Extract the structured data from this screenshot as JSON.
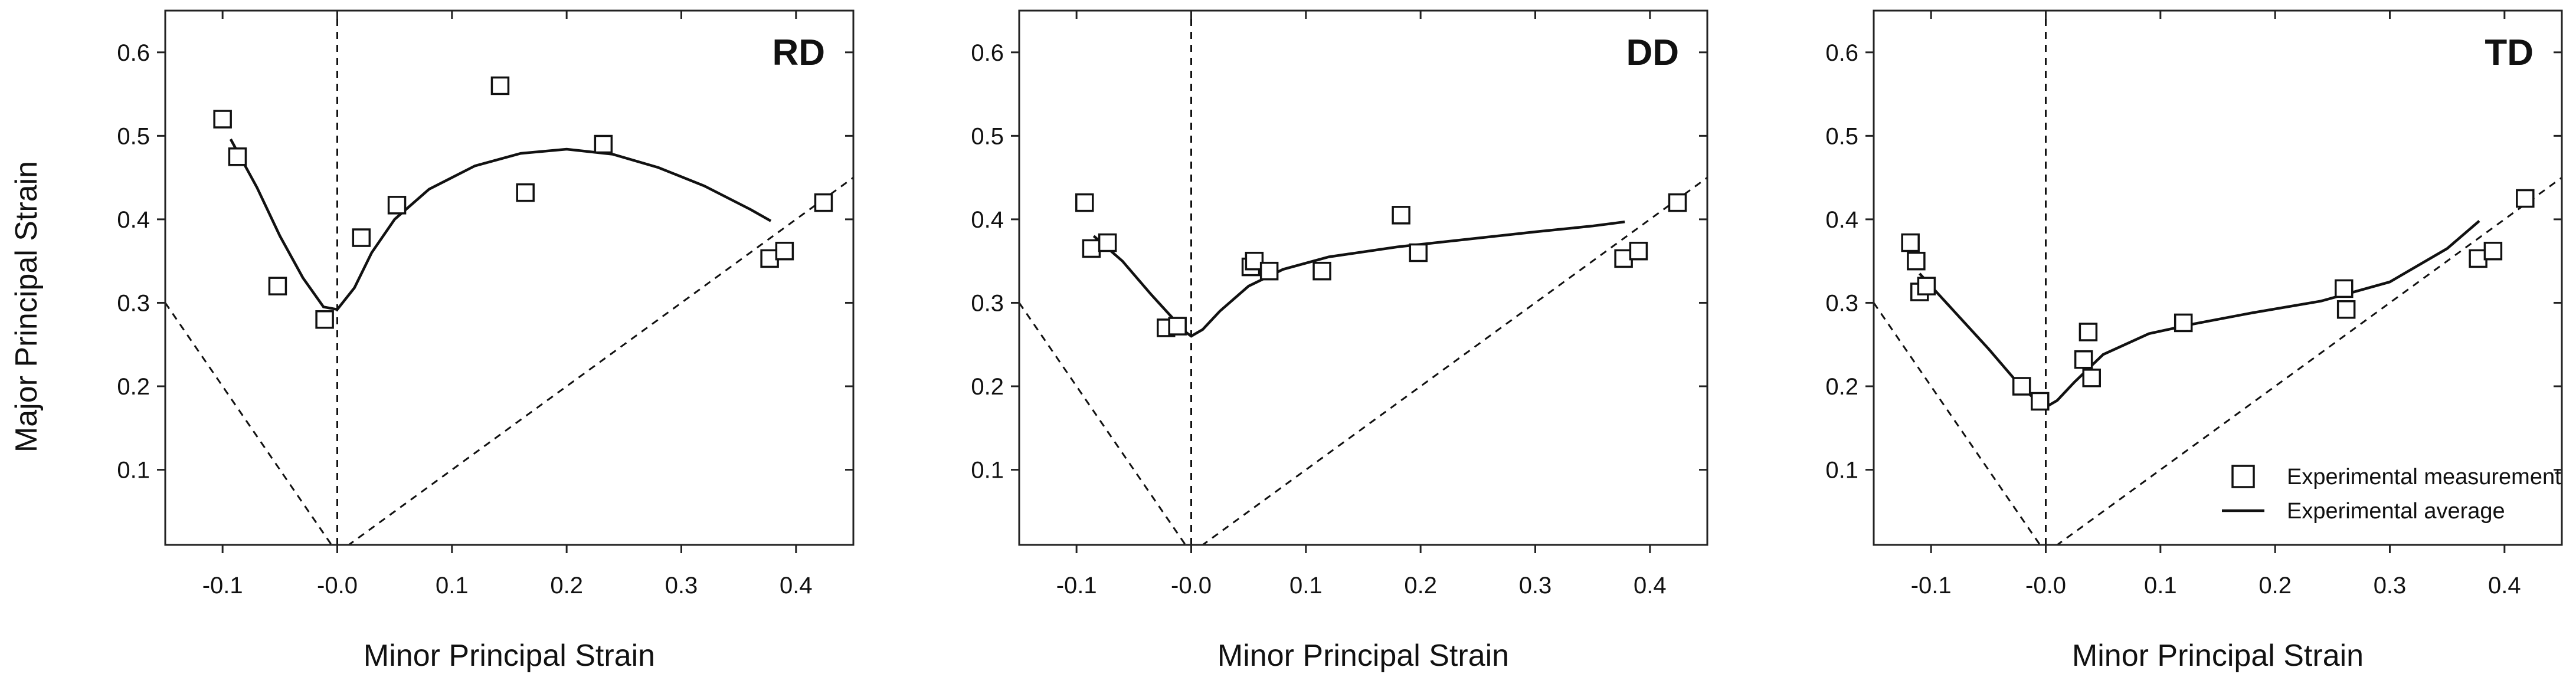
{
  "figure": {
    "ylabel": "Major Principal Strain",
    "legend": {
      "measurement_label": "Experimental measurement",
      "average_label": "Experimental average",
      "placement": "bottom-right of TD panel"
    }
  },
  "chart_data": [
    {
      "type": "scatter",
      "title": "RD",
      "xlabel": "Minor Principal Strain",
      "ylabel": "Major Principal Strain",
      "xlim": [
        -0.15,
        0.45
      ],
      "ylim": [
        0.01,
        0.65
      ],
      "xticks": [
        -0.1,
        0.0,
        0.1,
        0.2,
        0.3,
        0.4
      ],
      "xtick_labels": [
        "-0.1",
        "-0.0",
        "0.1",
        "0.2",
        "0.3",
        "0.4"
      ],
      "yticks": [
        0.1,
        0.2,
        0.3,
        0.4,
        0.5,
        0.6
      ],
      "ytick_labels": [
        "0.1",
        "0.2",
        "0.3",
        "0.4",
        "0.5",
        "0.6"
      ],
      "series": [
        {
          "name": "Experimental measurement",
          "points": [
            [
              -0.1,
              0.52
            ],
            [
              -0.087,
              0.475
            ],
            [
              -0.052,
              0.32
            ],
            [
              -0.011,
              0.28
            ],
            [
              0.021,
              0.378
            ],
            [
              0.052,
              0.417
            ],
            [
              0.142,
              0.56
            ],
            [
              0.164,
              0.432
            ],
            [
              0.232,
              0.49
            ],
            [
              0.377,
              0.353
            ],
            [
              0.39,
              0.362
            ],
            [
              0.424,
              0.42
            ]
          ]
        },
        {
          "name": "Experimental average",
          "line": [
            [
              -0.093,
              0.496
            ],
            [
              -0.07,
              0.438
            ],
            [
              -0.05,
              0.38
            ],
            [
              -0.03,
              0.33
            ],
            [
              -0.012,
              0.295
            ],
            [
              0.0,
              0.292
            ],
            [
              0.015,
              0.318
            ],
            [
              0.03,
              0.36
            ],
            [
              0.05,
              0.4
            ],
            [
              0.08,
              0.436
            ],
            [
              0.12,
              0.464
            ],
            [
              0.16,
              0.479
            ],
            [
              0.2,
              0.484
            ],
            [
              0.24,
              0.478
            ],
            [
              0.28,
              0.462
            ],
            [
              0.32,
              0.44
            ],
            [
              0.36,
              0.412
            ],
            [
              0.378,
              0.398
            ]
          ]
        }
      ],
      "reference_lines": [
        {
          "name": "uniaxial-tension",
          "from": [
            -0.15,
            0.3
          ],
          "to": [
            0.0,
            0.0
          ]
        },
        {
          "name": "equi-biaxial",
          "from": [
            0.0,
            0.0
          ],
          "to": [
            0.45,
            0.45
          ]
        },
        {
          "name": "plane-strain",
          "from": [
            0.0,
            0.01
          ],
          "to": [
            0.0,
            0.65
          ]
        }
      ]
    },
    {
      "type": "scatter",
      "title": "DD",
      "xlabel": "Minor Principal Strain",
      "ylabel": "Major Principal Strain",
      "xlim": [
        -0.15,
        0.45
      ],
      "ylim": [
        0.01,
        0.65
      ],
      "xticks": [
        -0.1,
        0.0,
        0.1,
        0.2,
        0.3,
        0.4
      ],
      "xtick_labels": [
        "-0.1",
        "-0.0",
        "0.1",
        "0.2",
        "0.3",
        "0.4"
      ],
      "yticks": [
        0.1,
        0.2,
        0.3,
        0.4,
        0.5,
        0.6
      ],
      "ytick_labels": [
        "0.1",
        "0.2",
        "0.3",
        "0.4",
        "0.5",
        "0.6"
      ],
      "series": [
        {
          "name": "Experimental measurement",
          "points": [
            [
              -0.093,
              0.42
            ],
            [
              -0.087,
              0.365
            ],
            [
              -0.073,
              0.372
            ],
            [
              -0.022,
              0.27
            ],
            [
              -0.012,
              0.272
            ],
            [
              0.052,
              0.343
            ],
            [
              0.055,
              0.35
            ],
            [
              0.068,
              0.338
            ],
            [
              0.114,
              0.338
            ],
            [
              0.183,
              0.405
            ],
            [
              0.198,
              0.36
            ],
            [
              0.377,
              0.353
            ],
            [
              0.39,
              0.362
            ],
            [
              0.424,
              0.42
            ]
          ]
        },
        {
          "name": "Experimental average",
          "line": [
            [
              -0.085,
              0.38
            ],
            [
              -0.06,
              0.35
            ],
            [
              -0.035,
              0.31
            ],
            [
              -0.015,
              0.28
            ],
            [
              -0.005,
              0.265
            ],
            [
              0.0,
              0.26
            ],
            [
              0.01,
              0.268
            ],
            [
              0.025,
              0.29
            ],
            [
              0.05,
              0.32
            ],
            [
              0.08,
              0.34
            ],
            [
              0.12,
              0.355
            ],
            [
              0.18,
              0.367
            ],
            [
              0.24,
              0.376
            ],
            [
              0.3,
              0.385
            ],
            [
              0.35,
              0.392
            ],
            [
              0.378,
              0.397
            ]
          ]
        }
      ],
      "reference_lines": [
        {
          "name": "uniaxial-tension",
          "from": [
            -0.15,
            0.3
          ],
          "to": [
            0.0,
            0.0
          ]
        },
        {
          "name": "equi-biaxial",
          "from": [
            0.0,
            0.0
          ],
          "to": [
            0.45,
            0.45
          ]
        },
        {
          "name": "plane-strain",
          "from": [
            0.0,
            0.01
          ],
          "to": [
            0.0,
            0.65
          ]
        }
      ]
    },
    {
      "type": "scatter",
      "title": "TD",
      "xlabel": "Minor Principal Strain",
      "ylabel": "Major Principal Strain",
      "xlim": [
        -0.15,
        0.45
      ],
      "ylim": [
        0.01,
        0.65
      ],
      "xticks": [
        -0.1,
        0.0,
        0.1,
        0.2,
        0.3,
        0.4
      ],
      "xtick_labels": [
        "-0.1",
        "-0.0",
        "0.1",
        "0.2",
        "0.3",
        "0.4"
      ],
      "yticks": [
        0.1,
        0.2,
        0.3,
        0.4,
        0.5,
        0.6
      ],
      "ytick_labels": [
        "0.1",
        "0.2",
        "0.3",
        "0.4",
        "0.5",
        "0.6"
      ],
      "series": [
        {
          "name": "Experimental measurement",
          "points": [
            [
              -0.118,
              0.372
            ],
            [
              -0.113,
              0.35
            ],
            [
              -0.11,
              0.313
            ],
            [
              -0.104,
              0.32
            ],
            [
              -0.021,
              0.2
            ],
            [
              -0.005,
              0.182
            ],
            [
              0.033,
              0.232
            ],
            [
              0.037,
              0.265
            ],
            [
              0.04,
              0.21
            ],
            [
              0.12,
              0.276
            ],
            [
              0.26,
              0.317
            ],
            [
              0.262,
              0.292
            ],
            [
              0.377,
              0.353
            ],
            [
              0.39,
              0.362
            ],
            [
              0.418,
              0.425
            ]
          ]
        },
        {
          "name": "Experimental average",
          "line": [
            [
              -0.11,
              0.335
            ],
            [
              -0.08,
              0.29
            ],
            [
              -0.05,
              0.245
            ],
            [
              -0.025,
              0.205
            ],
            [
              -0.01,
              0.185
            ],
            [
              0.0,
              0.175
            ],
            [
              0.01,
              0.183
            ],
            [
              0.025,
              0.205
            ],
            [
              0.05,
              0.238
            ],
            [
              0.09,
              0.263
            ],
            [
              0.13,
              0.275
            ],
            [
              0.18,
              0.288
            ],
            [
              0.24,
              0.302
            ],
            [
              0.3,
              0.325
            ],
            [
              0.35,
              0.365
            ],
            [
              0.378,
              0.398
            ]
          ]
        }
      ],
      "reference_lines": [
        {
          "name": "uniaxial-tension",
          "from": [
            -0.15,
            0.3
          ],
          "to": [
            0.0,
            0.0
          ]
        },
        {
          "name": "equi-biaxial",
          "from": [
            0.0,
            0.0
          ],
          "to": [
            0.45,
            0.45
          ]
        },
        {
          "name": "plane-strain",
          "from": [
            0.0,
            0.01
          ],
          "to": [
            0.0,
            0.65
          ]
        }
      ]
    }
  ]
}
